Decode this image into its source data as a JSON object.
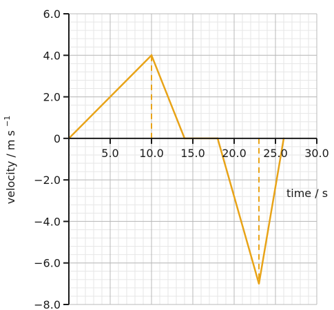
{
  "chart_data": {
    "type": "line",
    "xlabel": "time / s",
    "ylabel_main": "velocity / m s",
    "ylabel_sup": "−1",
    "xlim": [
      0,
      30
    ],
    "ylim": [
      -8,
      6
    ],
    "grid": true,
    "x_ticks": [
      5,
      10,
      15,
      20,
      25,
      30
    ],
    "x_tick_labels": [
      "5.0",
      "10.0",
      "15.0",
      "20.0",
      "25.0",
      "30.0"
    ],
    "y_ticks": [
      6,
      4,
      2,
      0,
      -2,
      -4,
      -6,
      -8
    ],
    "y_tick_labels": [
      "6.0",
      "4.0",
      "2.0",
      "0",
      "−2.0",
      "−4.0",
      "−6.0",
      "−8.0"
    ],
    "series": [
      {
        "color": "#e8a317",
        "x": [
          0,
          10,
          14,
          18,
          23,
          26
        ],
        "y": [
          0,
          4,
          0,
          0,
          -7,
          0
        ]
      }
    ],
    "guide_lines": [
      {
        "x": 10,
        "y": 4
      },
      {
        "x": 23,
        "y": -7
      }
    ]
  }
}
